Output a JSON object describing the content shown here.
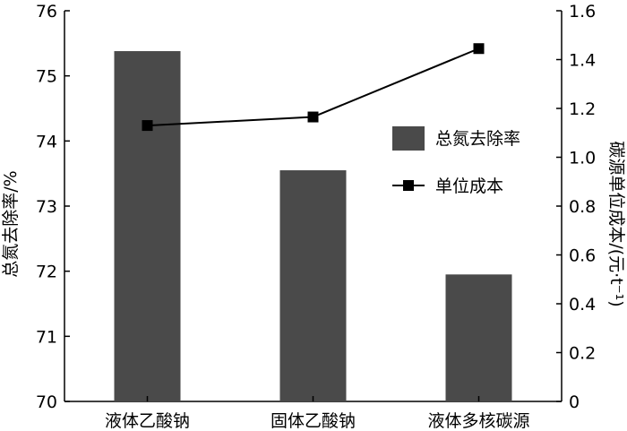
{
  "chart_data": {
    "type": "bar+line",
    "categories": [
      "液体乙酸钠",
      "固体乙酸钠",
      "液体多核碳源"
    ],
    "series": [
      {
        "name": "总氮去除率",
        "type": "bar",
        "axis": "left",
        "values": [
          75.38,
          73.55,
          71.95
        ],
        "color": "#4a4a4a"
      },
      {
        "name": "单位成本",
        "type": "line",
        "axis": "right",
        "marker": "square",
        "values": [
          1.13,
          1.165,
          1.445
        ],
        "color": "#000000"
      }
    ],
    "y_left": {
      "label": "总氮去除率/%",
      "range": [
        70,
        76
      ],
      "ticks": [
        "70",
        "71",
        "72",
        "73",
        "74",
        "75",
        "76"
      ]
    },
    "y_right": {
      "label": "碳源单位成本/(元·t⁻¹)",
      "range": [
        0,
        1.6
      ],
      "ticks": [
        "0",
        "0.2",
        "0.4",
        "0.6",
        "0.8",
        "1.0",
        "1.2",
        "1.4",
        "1.6"
      ]
    },
    "grid": false,
    "legend_position": "right"
  }
}
